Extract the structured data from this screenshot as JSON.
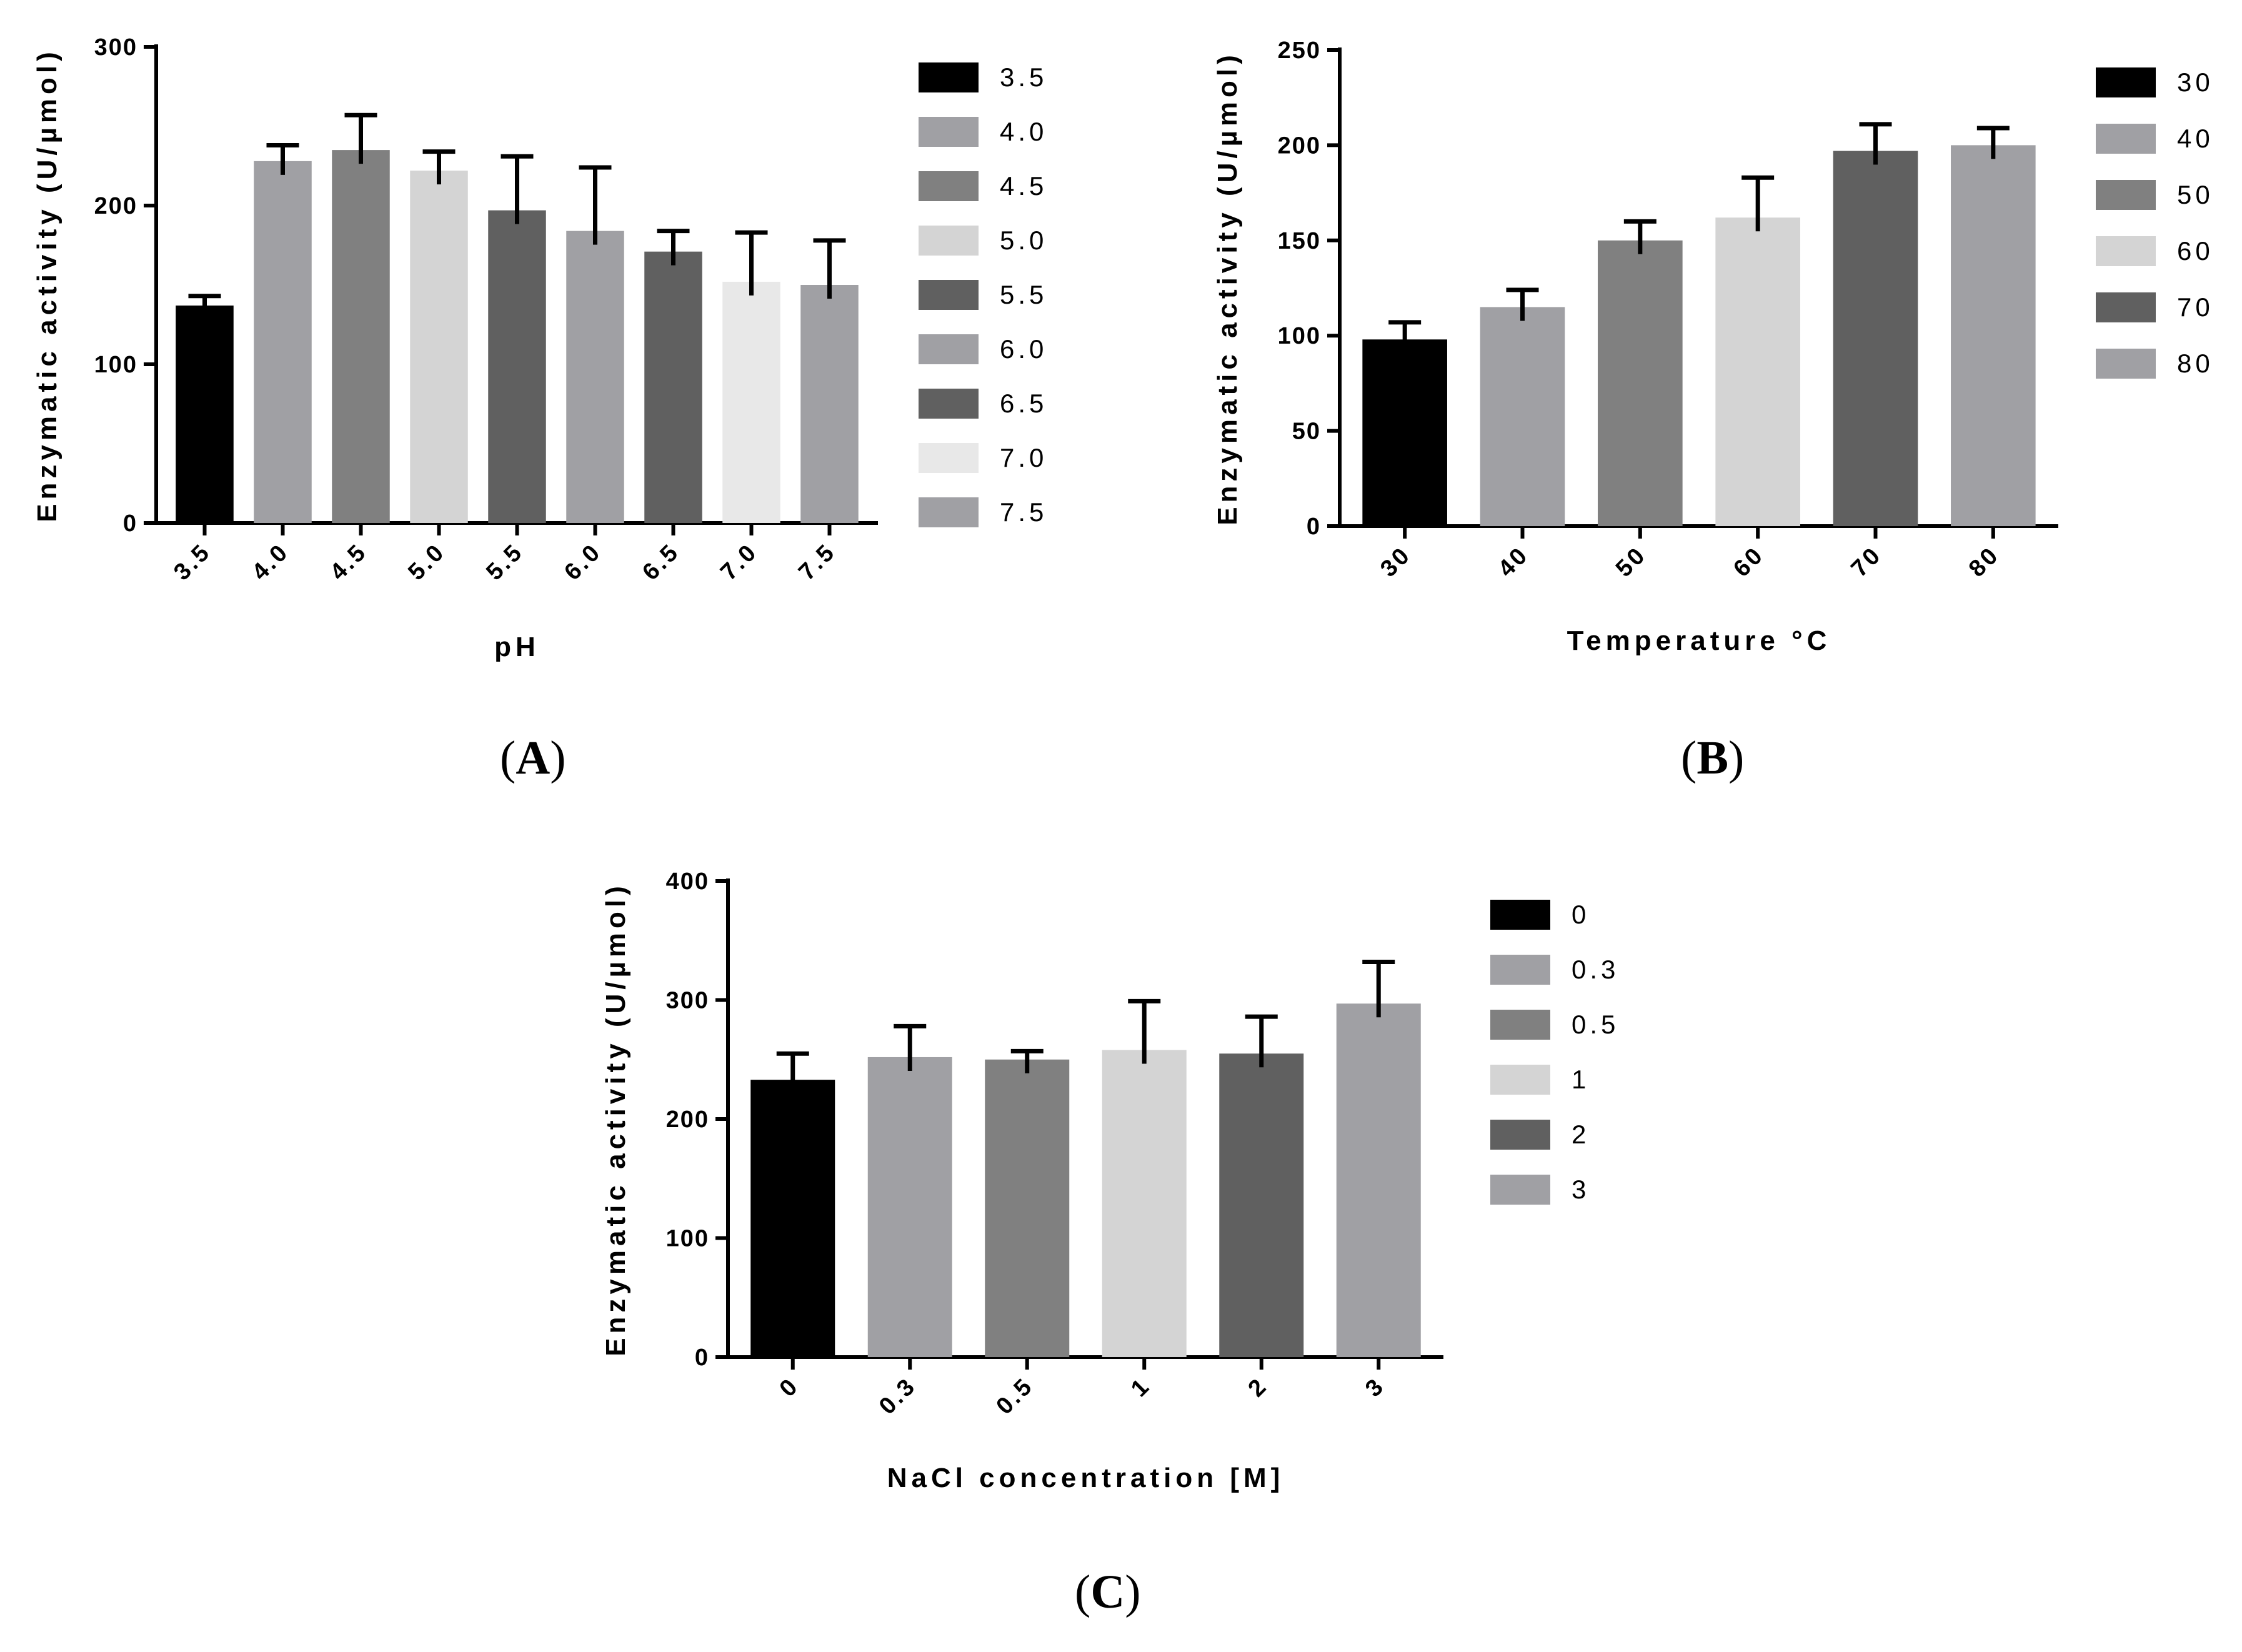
{
  "panels": [
    {
      "label_open": "(",
      "label_letter": "A",
      "label_close": ")"
    },
    {
      "label_open": "(",
      "label_letter": "B",
      "label_close": ")"
    },
    {
      "label_open": "(",
      "label_letter": "C",
      "label_close": ")"
    }
  ],
  "chart_data": [
    {
      "type": "bar",
      "panel": "A",
      "title": "",
      "xlabel": "pH",
      "ylabel": "Enzymatic activity (U/µmol)",
      "categories": [
        "3.5",
        "4.0",
        "4.5",
        "5.0",
        "5.5",
        "6.0",
        "6.5",
        "7.0",
        "7.5"
      ],
      "values": [
        137,
        228,
        235,
        222,
        197,
        184,
        171,
        152,
        150
      ],
      "error_plus": [
        6,
        10,
        22,
        12,
        34,
        40,
        13,
        31,
        28
      ],
      "colors": [
        "#000000",
        "#a0a0a4",
        "#808080",
        "#d4d4d4",
        "#606060",
        "#a0a0a4",
        "#606060",
        "#e8e8e8",
        "#a0a0a4"
      ],
      "yticks": [
        "0",
        "100",
        "200",
        "300"
      ],
      "ylim": [
        0,
        300
      ],
      "legend_position": "right",
      "legend": [
        "3.5",
        "4.0",
        "4.5",
        "5.0",
        "5.5",
        "6.0",
        "6.5",
        "7.0",
        "7.5"
      ]
    },
    {
      "type": "bar",
      "panel": "B",
      "title": "",
      "xlabel": "Temperature °C",
      "ylabel": "Enzymatic activity (U/µmol)",
      "categories": [
        "30",
        "40",
        "50",
        "60",
        "70",
        "80"
      ],
      "values": [
        98,
        115,
        150,
        162,
        197,
        200
      ],
      "error_plus": [
        9,
        9,
        10,
        21,
        14,
        9
      ],
      "colors": [
        "#000000",
        "#a0a0a4",
        "#808080",
        "#d4d4d4",
        "#606060",
        "#a0a0a4"
      ],
      "yticks": [
        "0",
        "50",
        "100",
        "150",
        "200",
        "250"
      ],
      "ylim": [
        0,
        250
      ],
      "legend_position": "right",
      "legend": [
        "30",
        "40",
        "50",
        "60",
        "70",
        "80"
      ]
    },
    {
      "type": "bar",
      "panel": "C",
      "title": "",
      "xlabel": "NaCl concentration [M]",
      "ylabel": "Enzymatic activity (U/µmol)",
      "categories": [
        "0",
        "0.3",
        "0.5",
        "1",
        "2",
        "3"
      ],
      "values": [
        233,
        252,
        250,
        258,
        255,
        297
      ],
      "error_plus": [
        22,
        26,
        7,
        41,
        31,
        35
      ],
      "colors": [
        "#000000",
        "#a0a0a4",
        "#808080",
        "#d4d4d4",
        "#606060",
        "#a0a0a4"
      ],
      "yticks": [
        "0",
        "100",
        "200",
        "300",
        "400"
      ],
      "ylim": [
        0,
        400
      ],
      "legend_position": "right",
      "legend": [
        "0",
        "0.3",
        "0.5",
        "1",
        "2",
        "3"
      ]
    }
  ]
}
